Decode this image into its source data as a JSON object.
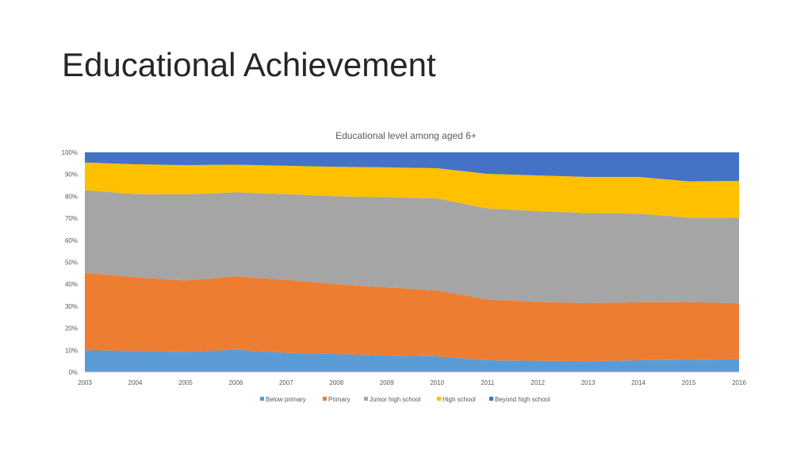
{
  "slide": {
    "title": "Educational Achievement"
  },
  "chart_data": {
    "type": "area",
    "stacked": "percent",
    "title": "Educational level among aged 6+",
    "x": [
      "2003",
      "2004",
      "2005",
      "2006",
      "2007",
      "2008",
      "2009",
      "2010",
      "2011",
      "2012",
      "2013",
      "2014",
      "2015",
      "2016"
    ],
    "yticks": [
      "0%",
      "10%",
      "20%",
      "30%",
      "40%",
      "50%",
      "60%",
      "70%",
      "80%",
      "90%",
      "100%"
    ],
    "ylim": [
      0,
      100
    ],
    "grid": false,
    "legend_position": "bottom",
    "series": [
      {
        "name": "Below primary",
        "color": "#5B9BD5",
        "values": [
          10.0,
          9.6,
          9.2,
          10.2,
          8.8,
          8.2,
          7.6,
          7.2,
          5.4,
          5.2,
          5.0,
          5.4,
          5.6,
          5.8
        ]
      },
      {
        "name": "Primary",
        "color": "#ED7D31",
        "values": [
          35.2,
          33.6,
          32.5,
          33.4,
          33.2,
          31.8,
          31.0,
          30.0,
          27.6,
          26.8,
          26.4,
          26.4,
          26.3,
          25.5
        ]
      },
      {
        "name": "Junior high school",
        "color": "#A5A5A5",
        "values": [
          37.6,
          37.8,
          39.2,
          38.2,
          39.0,
          40.0,
          41.0,
          41.8,
          41.5,
          41.3,
          41.0,
          40.3,
          38.4,
          38.9
        ]
      },
      {
        "name": "High school",
        "color": "#FFC000",
        "values": [
          12.6,
          13.6,
          13.3,
          12.6,
          12.9,
          13.4,
          13.6,
          13.8,
          15.7,
          16.2,
          16.4,
          16.7,
          16.5,
          16.8
        ]
      },
      {
        "name": "Beyond high school",
        "color": "#4472C4",
        "values": [
          4.6,
          5.4,
          5.8,
          5.6,
          6.1,
          6.6,
          6.8,
          7.2,
          9.8,
          10.5,
          11.2,
          11.2,
          13.2,
          13.0
        ]
      }
    ]
  }
}
